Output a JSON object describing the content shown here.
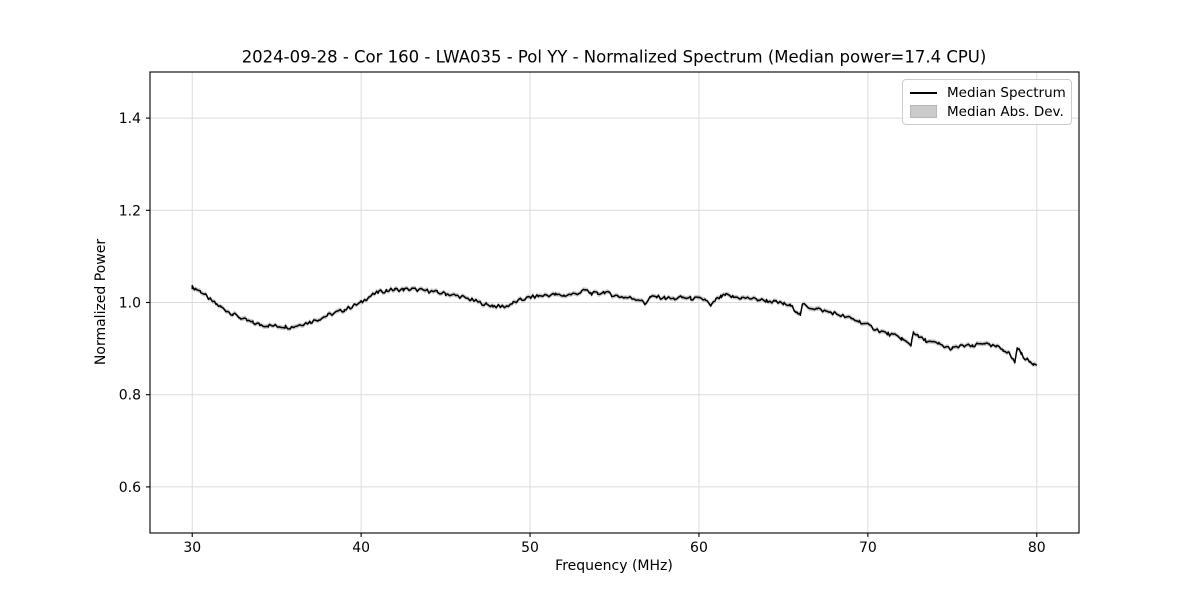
{
  "figure": {
    "background": "#ffffff",
    "title_parts": {
      "date": "2024-09-28",
      "correlator": "Cor 160",
      "station": "LWA035",
      "polarization": "Pol YY",
      "plot_kind": "Normalized Spectrum",
      "median_power": "Median power=17.4 CPU"
    }
  },
  "chart_data": {
    "type": "line",
    "title": "2024-09-28 - Cor 160 - LWA035 - Pol YY - Normalized Spectrum (Median power=17.4 CPU)",
    "xlabel": "Frequency (MHz)",
    "ylabel": "Normalized Power",
    "xlim": [
      27.5,
      82.5
    ],
    "ylim": [
      0.5,
      1.5
    ],
    "grid": true,
    "grid_color": "#dcdcdc",
    "xticks": {
      "values": [
        30,
        40,
        50,
        60,
        70,
        80
      ],
      "labels": [
        "30",
        "40",
        "50",
        "60",
        "70",
        "80"
      ]
    },
    "yticks": {
      "values": [
        0.6,
        0.8,
        1.0,
        1.2,
        1.4
      ],
      "labels": [
        "0.6",
        "0.8",
        "1.0",
        "1.2",
        "1.4"
      ]
    },
    "legend": {
      "position": "upper right",
      "entries": [
        {
          "label": "Median Spectrum",
          "type": "line",
          "color": "#000000"
        },
        {
          "label": "Median Abs. Dev.",
          "type": "patch",
          "color": "#cbcbcb"
        }
      ]
    },
    "series": [
      {
        "name": "Median Spectrum",
        "color": "#000000",
        "line_width": 1.5,
        "anchors_x": [
          30.0,
          30.2,
          30.5,
          30.8,
          31.1,
          31.4,
          31.7,
          32.0,
          32.4,
          32.8,
          33.2,
          33.6,
          34.0,
          34.5,
          35.0,
          35.5,
          35.8,
          36.2,
          36.6,
          37.0,
          37.5,
          38.0,
          38.5,
          39.0,
          39.5,
          40.0,
          40.3,
          40.6,
          41.0,
          41.5,
          42.0,
          42.5,
          43.0,
          43.5,
          44.0,
          44.5,
          45.0,
          45.5,
          46.0,
          46.5,
          47.0,
          47.4,
          47.8,
          48.2,
          48.6,
          49.0,
          49.5,
          50.0,
          50.5,
          51.0,
          51.5,
          52.0,
          52.5,
          53.0,
          53.3,
          53.6,
          54.0,
          54.4,
          54.8,
          55.2,
          55.6,
          56.0,
          56.5,
          56.8,
          57.1,
          57.5,
          58.0,
          58.5,
          59.0,
          59.5,
          60.0,
          60.4,
          60.7,
          61.0,
          61.3,
          61.6,
          62.0,
          62.5,
          63.0,
          63.5,
          64.0,
          64.5,
          65.0,
          65.4,
          65.8,
          66.0,
          66.15,
          66.5,
          67.0,
          67.5,
          68.0,
          68.5,
          69.0,
          69.5,
          70.0,
          70.4,
          70.8,
          71.2,
          71.6,
          72.0,
          72.3,
          72.55,
          72.7,
          73.0,
          73.4,
          73.8,
          74.2,
          74.6,
          75.0,
          75.4,
          75.8,
          76.2,
          76.6,
          76.9,
          77.2,
          77.6,
          78.0,
          78.3,
          78.55,
          78.7,
          78.85,
          79.1,
          79.4,
          79.6,
          79.8,
          80.0
        ],
        "anchors_y": [
          1.033,
          1.03,
          1.024,
          1.015,
          1.005,
          0.997,
          0.99,
          0.983,
          0.975,
          0.968,
          0.961,
          0.956,
          0.952,
          0.95,
          0.949,
          0.948,
          0.946,
          0.95,
          0.954,
          0.958,
          0.964,
          0.972,
          0.978,
          0.984,
          0.992,
          1.0,
          1.008,
          1.015,
          1.022,
          1.026,
          1.028,
          1.028,
          1.029,
          1.027,
          1.025,
          1.022,
          1.019,
          1.016,
          1.012,
          1.006,
          1.0,
          0.996,
          0.993,
          0.991,
          0.992,
          0.999,
          1.006,
          1.011,
          1.014,
          1.016,
          1.017,
          1.015,
          1.018,
          1.022,
          1.027,
          1.02,
          1.019,
          1.023,
          1.017,
          1.014,
          1.011,
          1.01,
          1.006,
          0.997,
          1.011,
          1.012,
          1.01,
          1.008,
          1.011,
          1.009,
          1.008,
          1.006,
          0.991,
          1.006,
          1.012,
          1.016,
          1.012,
          1.01,
          1.009,
          1.006,
          1.004,
          1.001,
          0.997,
          0.993,
          0.981,
          0.974,
          0.996,
          0.99,
          0.986,
          0.981,
          0.977,
          0.971,
          0.965,
          0.959,
          0.951,
          0.943,
          0.937,
          0.932,
          0.928,
          0.922,
          0.913,
          0.908,
          0.937,
          0.925,
          0.918,
          0.913,
          0.91,
          0.903,
          0.9,
          0.904,
          0.907,
          0.904,
          0.91,
          0.913,
          0.906,
          0.904,
          0.898,
          0.893,
          0.878,
          0.871,
          0.902,
          0.888,
          0.876,
          0.871,
          0.868,
          0.867
        ]
      }
    ],
    "band": {
      "name": "Median Abs. Dev.",
      "halfwidth": 0.005,
      "color": "#c9c9c9"
    },
    "noise": {
      "amplitude": 0.0042,
      "step_mhz": 0.12
    }
  },
  "colors": {
    "axes_border": "#000000",
    "tick_label": "#000000",
    "legend_border": "#cccccc"
  }
}
